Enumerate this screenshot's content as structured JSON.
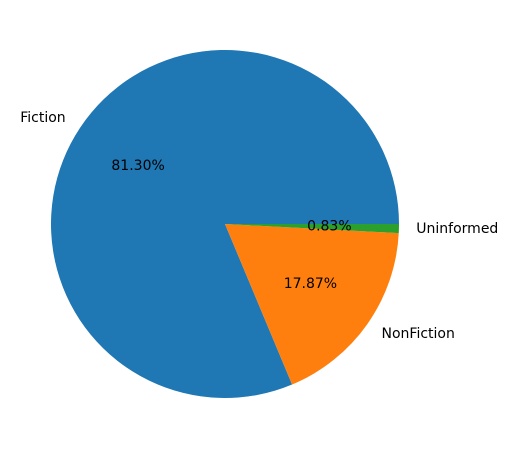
{
  "chart_data": {
    "type": "pie",
    "title": "",
    "slices": [
      {
        "label": "Fiction",
        "value": 81.3,
        "pct_label": "81.30%",
        "color": "#1f77b4"
      },
      {
        "label": "NonFiction",
        "value": 17.87,
        "pct_label": "17.87%",
        "color": "#ff7f0e"
      },
      {
        "label": "Uninformed",
        "value": 0.83,
        "pct_label": "0.83%",
        "color": "#2ca02c"
      }
    ],
    "start_angle_deg": 0,
    "direction": "counterclockwise",
    "legend": "none"
  }
}
